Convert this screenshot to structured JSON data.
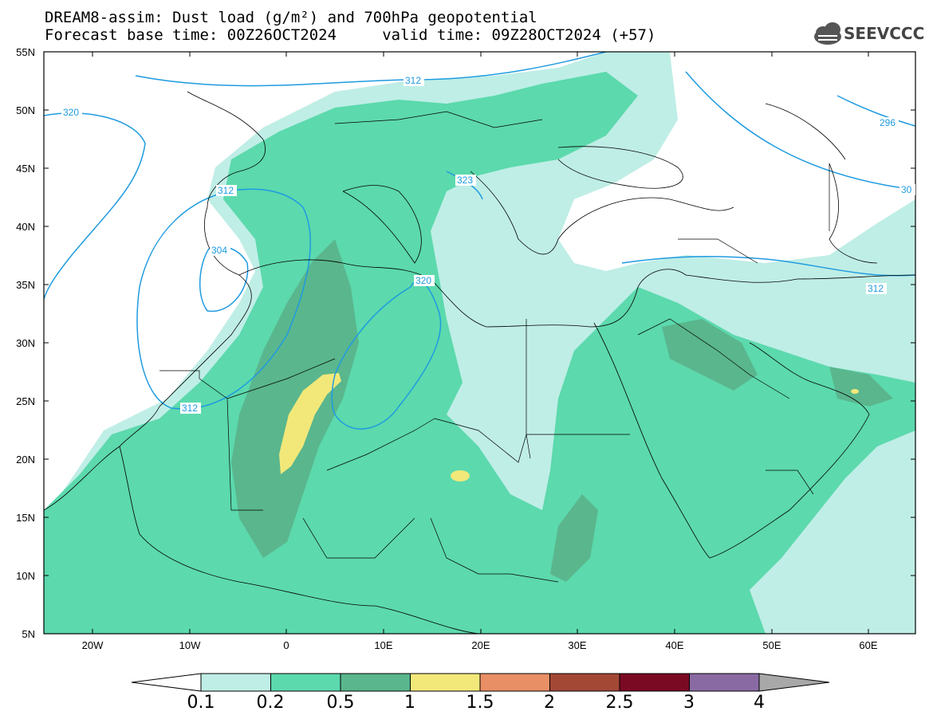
{
  "title": {
    "line1": "DREAM8-assim: Dust load (g/m²) and 700hPa geopotential",
    "line2": "Forecast base time: 00Z26OCT2024     valid time: 09Z28OCT2024 (+57)"
  },
  "logo": {
    "text": "SEEVCCC",
    "icon": "cloud-icon"
  },
  "map": {
    "lat_labels": [
      "55N",
      "50N",
      "45N",
      "40N",
      "35N",
      "30N",
      "25N",
      "20N",
      "15N",
      "10N",
      "5N"
    ],
    "lon_labels": [
      "20W",
      "10W",
      "0",
      "10E",
      "20E",
      "30E",
      "40E",
      "50E",
      "60E"
    ],
    "contour_labels": [
      "320",
      "312",
      "296",
      "312",
      "304",
      "320",
      "323",
      "312",
      "312",
      "30"
    ]
  },
  "legend": {
    "levels": [
      "0.1",
      "0.2",
      "0.5",
      "1",
      "1.5",
      "2",
      "2.5",
      "3",
      "4"
    ],
    "colors": [
      "#ffffff",
      "#bfeee6",
      "#5cd9ad",
      "#5ab68d",
      "#f2e87a",
      "#e98f65",
      "#a44836",
      "#7a0a24",
      "#8a6aa3",
      "#a8a8a8"
    ]
  }
}
